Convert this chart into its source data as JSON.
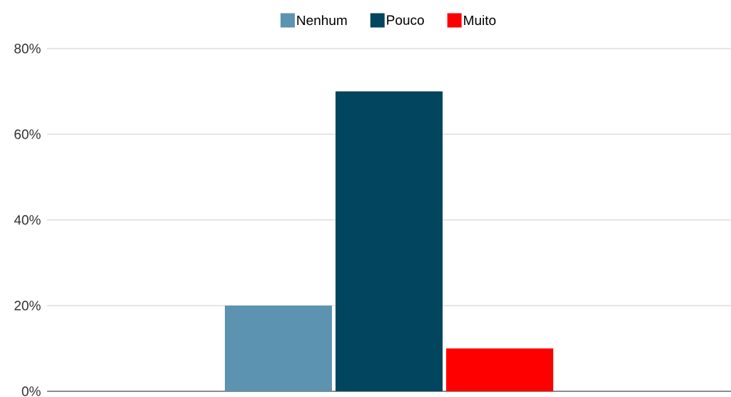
{
  "chart_data": {
    "type": "bar",
    "categories": [
      null
    ],
    "series": [
      {
        "name": "Nenhum",
        "color": "#5b93b0",
        "values": [
          20
        ]
      },
      {
        "name": "Pouco",
        "color": "#02455f",
        "values": [
          70
        ]
      },
      {
        "name": "Muito",
        "color": "#ff0000",
        "values": [
          10
        ]
      }
    ],
    "ylim": [
      0,
      80
    ],
    "yticks": [
      {
        "value": 0,
        "label": "0%"
      },
      {
        "value": 20,
        "label": "20%"
      },
      {
        "value": 40,
        "label": "40%"
      },
      {
        "value": 60,
        "label": "60%"
      },
      {
        "value": 80,
        "label": "80%"
      }
    ],
    "grid": "y",
    "legend": "top"
  }
}
